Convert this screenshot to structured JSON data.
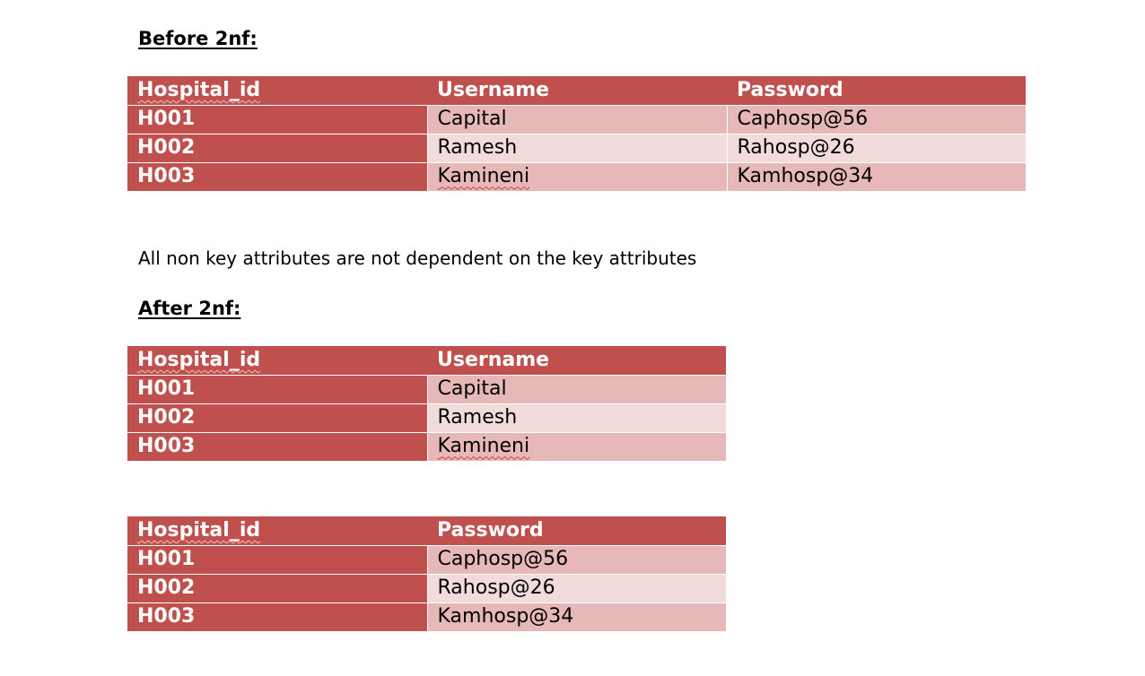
{
  "before": {
    "heading": "Before 2nf:",
    "headers": [
      "Hospital_id",
      "Username",
      "Password"
    ],
    "rows": [
      [
        "H001",
        "Capital",
        "Caphosp@56"
      ],
      [
        "H002",
        "Ramesh",
        "Rahosp@26"
      ],
      [
        "H003",
        "Kamineni",
        "Kamhosp@34"
      ]
    ]
  },
  "note": "All non key attributes are not dependent on the key attributes",
  "after": {
    "heading": "After 2nf:",
    "table1": {
      "headers": [
        "Hospital_id",
        "Username"
      ],
      "rows": [
        [
          "H001",
          "Capital"
        ],
        [
          "H002",
          "Ramesh"
        ],
        [
          "H003",
          "Kamineni"
        ]
      ]
    },
    "table2": {
      "headers": [
        "Hospital_id",
        "Password"
      ],
      "rows": [
        [
          "H001",
          "Caphosp@56"
        ],
        [
          "H002",
          "Rahosp@26"
        ],
        [
          "H003",
          "Kamhosp@34"
        ]
      ]
    }
  },
  "colors": {
    "header_fill": "#c0504d",
    "band_dark": "#e6b8b7",
    "band_light": "#f2dcdb"
  }
}
